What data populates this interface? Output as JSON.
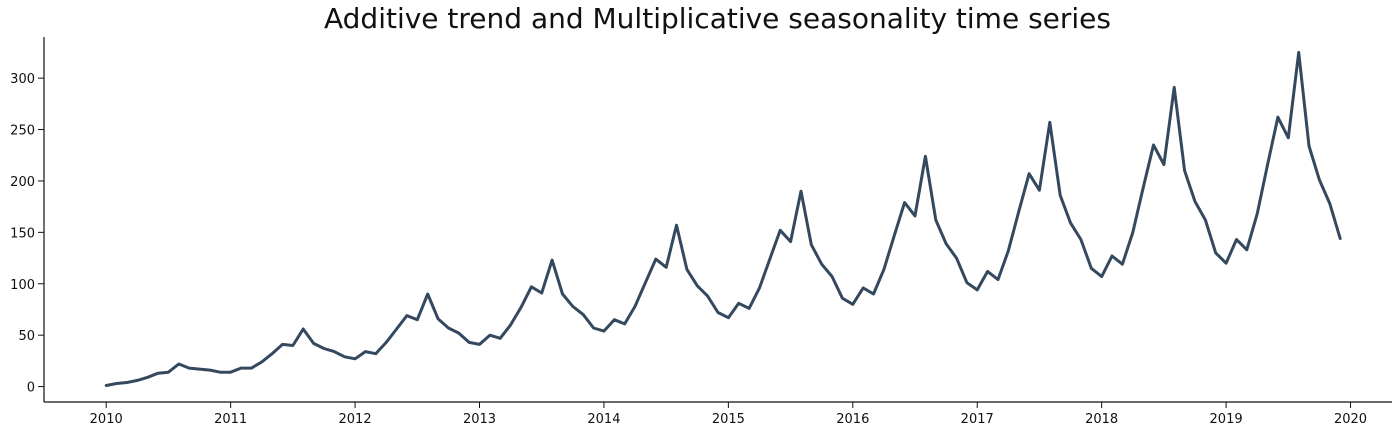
{
  "colors": {
    "line": "#34495e",
    "axis": "#111111"
  },
  "chart_data": {
    "type": "line",
    "title": "Additive trend and Multiplicative seasonality time series",
    "xlabel": "",
    "ylabel": "",
    "x_start": "2010-01",
    "x_frequency": "monthly",
    "xlim": [
      "2009-07",
      "2020-05"
    ],
    "ylim": [
      -15,
      340
    ],
    "x_ticks": [
      "2010",
      "2011",
      "2012",
      "2013",
      "2014",
      "2015",
      "2016",
      "2017",
      "2018",
      "2019",
      "2020"
    ],
    "y_ticks": [
      0,
      50,
      100,
      150,
      200,
      250,
      300
    ],
    "grid": false,
    "legend": "none",
    "series": [
      {
        "values": [
          1,
          3,
          4,
          6,
          9,
          13,
          14,
          22,
          18,
          17,
          16,
          14,
          14,
          18,
          18,
          24,
          32,
          41,
          40,
          56,
          42,
          37,
          34,
          29,
          27,
          34,
          32,
          43,
          56,
          69,
          65,
          90,
          66,
          57,
          52,
          43,
          41,
          50,
          47,
          60,
          77,
          97,
          91,
          123,
          90,
          78,
          70,
          57,
          54,
          65,
          61,
          78,
          101,
          124,
          116,
          157,
          114,
          98,
          88,
          72,
          67,
          81,
          76,
          96,
          124,
          152,
          141,
          190,
          138,
          119,
          107,
          86,
          80,
          96,
          90,
          114,
          147,
          179,
          166,
          224,
          162,
          139,
          125,
          101,
          94,
          112,
          104,
          132,
          170,
          207,
          191,
          257,
          186,
          159,
          143,
          115,
          107,
          127,
          119,
          150,
          193,
          235,
          216,
          291,
          210,
          180,
          162,
          130,
          120,
          143,
          133,
          168,
          216,
          262,
          242,
          325,
          234,
          201,
          178,
          144
        ]
      }
    ]
  }
}
